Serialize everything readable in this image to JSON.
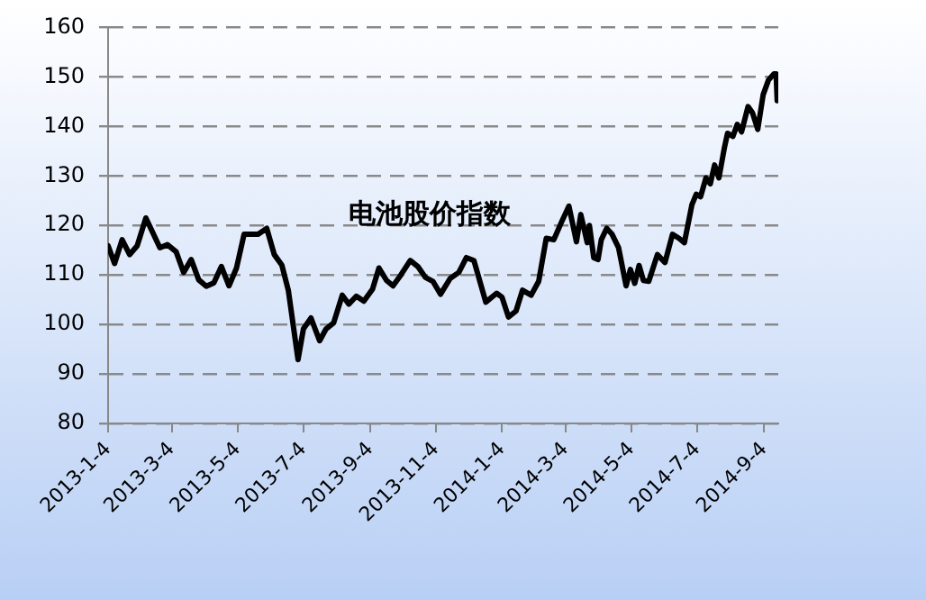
{
  "chart_data": {
    "type": "line",
    "title": "电池股价指数",
    "x": [
      "2013-01-04",
      "2013-01-10",
      "2013-01-17",
      "2013-01-24",
      "2013-01-31",
      "2013-02-08",
      "2013-02-21",
      "2013-02-28",
      "2013-03-08",
      "2013-03-15",
      "2013-03-22",
      "2013-03-29",
      "2013-04-05",
      "2013-04-12",
      "2013-04-19",
      "2013-04-26",
      "2013-05-03",
      "2013-05-10",
      "2013-05-23",
      "2013-05-31",
      "2013-06-07",
      "2013-06-14",
      "2013-06-20",
      "2013-06-29",
      "2013-07-04",
      "2013-07-11",
      "2013-07-19",
      "2013-07-25",
      "2013-08-01",
      "2013-08-09",
      "2013-08-15",
      "2013-08-22",
      "2013-08-29",
      "2013-09-06",
      "2013-09-12",
      "2013-09-19",
      "2013-09-25",
      "2013-10-02",
      "2013-10-11",
      "2013-10-18",
      "2013-10-25",
      "2013-11-01",
      "2013-11-08",
      "2013-11-17",
      "2013-11-25",
      "2013-12-02",
      "2013-12-09",
      "2013-12-20",
      "2013-12-30",
      "2014-01-04",
      "2014-01-10",
      "2014-01-17",
      "2014-01-23",
      "2014-01-31",
      "2014-02-07",
      "2014-02-14",
      "2014-02-21",
      "2014-02-28",
      "2014-03-07",
      "2014-03-14",
      "2014-03-18",
      "2014-03-24",
      "2014-03-26",
      "2014-03-30",
      "2014-04-03",
      "2014-04-06",
      "2014-04-11",
      "2014-04-16",
      "2014-04-22",
      "2014-04-29",
      "2014-05-03",
      "2014-05-07",
      "2014-05-11",
      "2014-05-15",
      "2014-05-20",
      "2014-05-28",
      "2014-06-04",
      "2014-06-11",
      "2014-06-17",
      "2014-06-22",
      "2014-06-29",
      "2014-07-03",
      "2014-07-07",
      "2014-07-12",
      "2014-07-16",
      "2014-07-20",
      "2014-07-24",
      "2014-07-29",
      "2014-08-01",
      "2014-08-06",
      "2014-08-10",
      "2014-08-14",
      "2014-08-20",
      "2014-08-24",
      "2014-08-29",
      "2014-09-03",
      "2014-09-08",
      "2014-09-13",
      "2014-09-15",
      "2014-09-16"
    ],
    "series": [
      {
        "color": "#000000",
        "values": [
          115.9,
          112.3,
          117.1,
          114.1,
          115.9,
          121.5,
          115.5,
          116.1,
          114.7,
          110.5,
          113.1,
          109.0,
          107.7,
          108.4,
          111.7,
          107.8,
          111.4,
          118.2,
          118.2,
          119.4,
          114.1,
          112.0,
          106.9,
          92.9,
          99.1,
          101.3,
          96.7,
          99.1,
          100.3,
          105.9,
          104.1,
          105.7,
          104.7,
          107.1,
          111.4,
          108.9,
          107.8,
          109.9,
          112.9,
          111.7,
          109.5,
          108.7,
          106.1,
          109.3,
          110.5,
          113.5,
          112.9,
          104.5,
          106.3,
          105.5,
          101.5,
          102.7,
          106.9,
          105.9,
          108.7,
          117.4,
          117.1,
          120.6,
          123.9,
          116.7,
          122.2,
          116.5,
          120.0,
          113.5,
          113.1,
          117.1,
          119.4,
          118.2,
          115.5,
          107.8,
          111.1,
          108.3,
          111.9,
          108.9,
          108.7,
          114.1,
          112.5,
          118.2,
          117.4,
          116.5,
          124.2,
          126.3,
          125.8,
          129.6,
          128.4,
          132.2,
          129.6,
          135.6,
          138.6,
          138.0,
          140.4,
          138.9,
          144.0,
          142.8,
          139.4,
          146.4,
          149.4,
          150.6,
          150.6,
          145.2
        ]
      }
    ],
    "xlim": [
      "2013-01-04",
      "2014-09-17"
    ],
    "xticks": [
      {
        "value": "2013-01-04",
        "label": "2013-1-4"
      },
      {
        "value": "2013-03-04",
        "label": "2013-3-4"
      },
      {
        "value": "2013-05-04",
        "label": "2013-5-4"
      },
      {
        "value": "2013-07-04",
        "label": "2013-7-4"
      },
      {
        "value": "2013-09-04",
        "label": "2013-9-4"
      },
      {
        "value": "2013-11-04",
        "label": "2013-11-4"
      },
      {
        "value": "2014-01-04",
        "label": "2014-1-4"
      },
      {
        "value": "2014-03-04",
        "label": "2014-3-4"
      },
      {
        "value": "2014-05-04",
        "label": "2014-5-4"
      },
      {
        "value": "2014-07-04",
        "label": "2014-7-4"
      },
      {
        "value": "2014-09-04",
        "label": "2014-9-4"
      }
    ],
    "ylim": [
      80,
      160
    ],
    "yticks": [
      80,
      90,
      100,
      110,
      120,
      130,
      140,
      150,
      160
    ],
    "grid": "y",
    "legend": false,
    "marker": "none",
    "line_style": "solid"
  }
}
